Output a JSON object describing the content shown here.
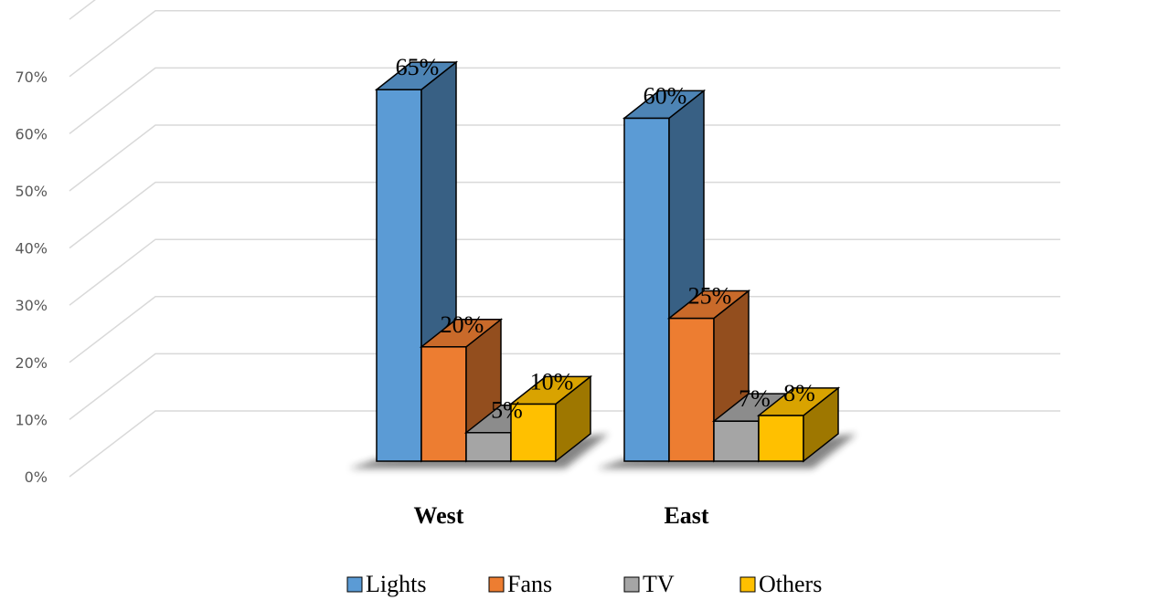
{
  "chart_data": {
    "type": "bar",
    "categories": [
      "West",
      "East"
    ],
    "series": [
      {
        "name": "Lights",
        "values": [
          65,
          60
        ],
        "labels": [
          "65%",
          "60%"
        ],
        "color": "#5B9BD5"
      },
      {
        "name": "Fans",
        "values": [
          20,
          25
        ],
        "labels": [
          "20%",
          "25%"
        ],
        "color": "#ED7D31"
      },
      {
        "name": "TV",
        "values": [
          5,
          7
        ],
        "labels": [
          "5%",
          "7%"
        ],
        "color": "#A5A5A5"
      },
      {
        "name": "Others",
        "values": [
          10,
          8
        ],
        "labels": [
          "10%",
          "8%"
        ],
        "color": "#FFC000"
      }
    ],
    "y_ticks": [
      "0%",
      "10%",
      "20%",
      "30%",
      "40%",
      "50%",
      "60%",
      "70%"
    ],
    "ylim": [
      0,
      80
    ],
    "style": "3d-clustered-column",
    "grid": true,
    "legend_position": "bottom"
  }
}
